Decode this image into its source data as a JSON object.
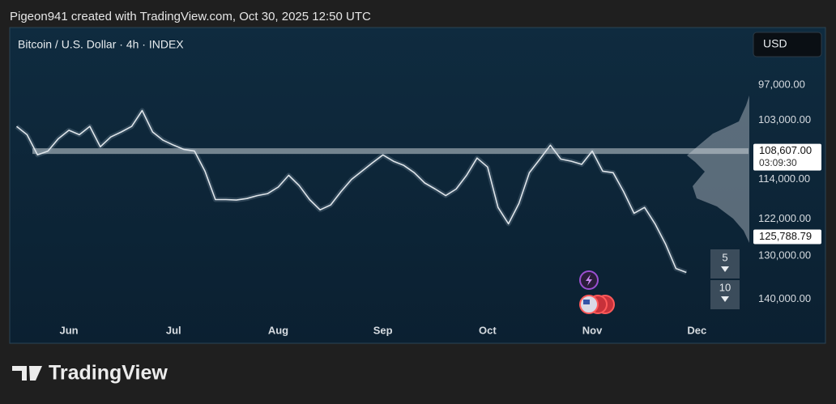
{
  "header": {
    "text": "Pigeon941 created with TradingView.com, Oct 30, 2025 12:50 UTC"
  },
  "footer": {
    "brand": "TradingView"
  },
  "controls": {
    "currency": "USD",
    "zoom_in": "5",
    "zoom_out": "10"
  },
  "chart_data": {
    "type": "line",
    "title": "Bitcoin / U.S. Dollar · 4h · INDEX",
    "color": "#dfe5ea",
    "log_scale": true,
    "inverted": true,
    "grid": false,
    "ylim": [
      88000,
      145000
    ],
    "yticks": [
      {
        "value": 97000,
        "label": "97,000.00"
      },
      {
        "value": 103000,
        "label": "103,000.00"
      },
      {
        "value": 114000,
        "label": "114,000.00"
      },
      {
        "value": 122000,
        "label": "122,000.00"
      },
      {
        "value": 130000,
        "label": "130,000.00"
      },
      {
        "value": 140000,
        "label": "140,000.00"
      }
    ],
    "current_price": {
      "value": 108607,
      "label": "108,607.00"
    },
    "countdown": "03:09:30",
    "marker_price": {
      "value": 125788.79,
      "label": "125,788.79"
    },
    "categories": [
      null,
      null,
      null,
      null,
      null,
      "Jun",
      null,
      null,
      null,
      null,
      null,
      null,
      null,
      null,
      null,
      "Jul",
      null,
      null,
      null,
      null,
      null,
      null,
      null,
      null,
      null,
      "Aug",
      null,
      null,
      null,
      null,
      null,
      null,
      null,
      null,
      null,
      "Sep",
      null,
      null,
      null,
      null,
      null,
      null,
      null,
      null,
      null,
      "Oct",
      null,
      null,
      null,
      null,
      null,
      null,
      null,
      null,
      null,
      "Nov",
      null,
      null,
      null,
      null,
      null,
      null,
      null,
      null,
      null,
      "Dec",
      null,
      null,
      null,
      null
    ],
    "values": [
      104100,
      105600,
      109300,
      108600,
      106300,
      104800,
      105600,
      104100,
      107800,
      106000,
      105100,
      104100,
      101300,
      105100,
      106600,
      107500,
      108300,
      108600,
      112400,
      118000,
      118000,
      118100,
      117800,
      117200,
      116800,
      115500,
      113200,
      115200,
      118000,
      120100,
      119100,
      116400,
      114000,
      112400,
      110800,
      109300,
      110500,
      111300,
      112700,
      114700,
      115900,
      117200,
      115900,
      113200,
      109900,
      111600,
      119600,
      123000,
      118800,
      112700,
      110100,
      107500,
      110100,
      110500,
      111100,
      108600,
      112400,
      112700,
      116400,
      120800,
      119600,
      123000,
      127300,
      132800,
      133700,
      null,
      null,
      null,
      null,
      null
    ]
  }
}
